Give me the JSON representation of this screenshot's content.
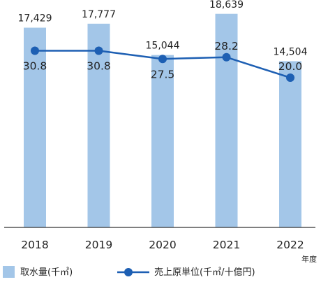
{
  "chart_data": {
    "type": "bar",
    "categories": [
      "2018",
      "2019",
      "2020",
      "2021",
      "2022"
    ],
    "x_unit": "年度",
    "series": [
      {
        "name": "取水量(千㎥)",
        "type": "bar",
        "axis": "left",
        "values": [
          17429,
          17777,
          15044,
          18639,
          14504
        ],
        "labels": [
          "17,429",
          "17,777",
          "15,044",
          "18,639",
          "14,504"
        ],
        "color": "#a3c6e8"
      },
      {
        "name": "売上原単位(千㎥/十億円)",
        "type": "line",
        "axis": "right",
        "values": [
          30.8,
          30.8,
          27.5,
          28.2,
          20.0
        ],
        "labels": [
          "30.8",
          "30.8",
          "27.5",
          "28.2",
          "20.0"
        ],
        "color": "#1d5fb3"
      }
    ],
    "ylim_bar": [
      0,
      19600
    ],
    "ylim_line": [
      -40,
      50
    ],
    "legend_position": "bottom",
    "grid": false
  }
}
